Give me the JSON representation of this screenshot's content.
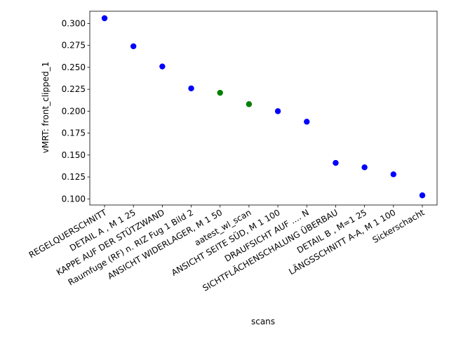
{
  "chart_data": {
    "type": "scatter",
    "xlabel": "scans",
    "ylabel": "vMRT: front_clipped_1",
    "ylim": [
      0.093,
      0.314
    ],
    "yticks": [
      0.1,
      0.125,
      0.15,
      0.175,
      0.2,
      0.225,
      0.25,
      0.275,
      0.3
    ],
    "ytick_labels": [
      "0.100",
      "0.125",
      "0.150",
      "0.175",
      "0.200",
      "0.225",
      "0.250",
      "0.275",
      "0.300"
    ],
    "categories": [
      "REGELQUERSCHNITT",
      "DETAIL  A , M 1 25",
      "KAPPE AUF DER STÜTZWAND",
      "Raumfuge (RF) n. RIZ Fug 1 Bild 2",
      "ANSICHT WIDERLAGER, M 1 50",
      "aatest_wl_scan",
      "ANSICHT SEITE SÜD, M 1  100",
      "DRAUFSICHT AUF  .... N",
      "SICHTFLÄCHENSCHALUNG   ÜBERBAU",
      "DETAIL  B , M=1 25",
      "LÄNGSSCHNITT A-A, M 1 100",
      "Sickerschacht"
    ],
    "values": [
      0.306,
      0.274,
      0.251,
      0.226,
      0.221,
      0.208,
      0.2,
      0.188,
      0.141,
      0.136,
      0.128,
      0.104
    ],
    "point_colors": [
      "#0000ff",
      "#0000ff",
      "#0000ff",
      "#0000ff",
      "#008000",
      "#008000",
      "#0000ff",
      "#0000ff",
      "#0000ff",
      "#0000ff",
      "#0000ff",
      "#0000ff"
    ],
    "grid": false,
    "legend": "none"
  }
}
